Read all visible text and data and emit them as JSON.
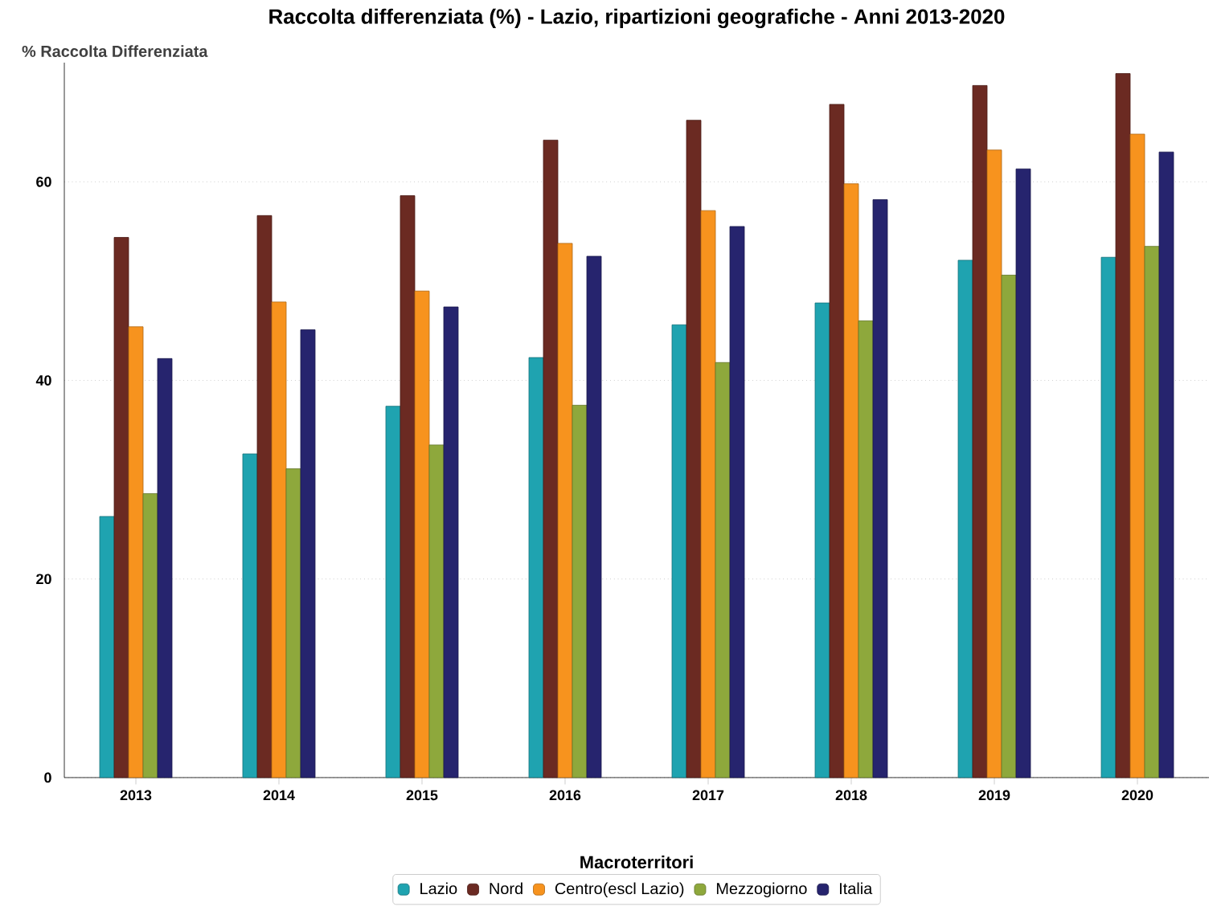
{
  "chart_data": {
    "type": "bar",
    "title": "Raccolta differenziata (%) - Lazio, ripartizioni geografiche - Anni 2013-2020",
    "ylabel": "% Raccolta Differenziata",
    "legend_title": "Macroterritori",
    "categories": [
      "2013",
      "2014",
      "2015",
      "2016",
      "2017",
      "2018",
      "2019",
      "2020"
    ],
    "series": [
      {
        "name": "Lazio",
        "color": "#1fa3b0",
        "values": [
          26.3,
          32.6,
          37.4,
          42.3,
          45.6,
          47.8,
          52.1,
          52.4
        ]
      },
      {
        "name": "Nord",
        "color": "#6b2a22",
        "values": [
          54.4,
          56.6,
          58.6,
          64.2,
          66.2,
          67.8,
          69.7,
          70.9
        ]
      },
      {
        "name": "Centro(escl Lazio)",
        "color": "#f7931e",
        "values": [
          45.4,
          47.9,
          49.0,
          53.8,
          57.1,
          59.8,
          63.2,
          64.8
        ]
      },
      {
        "name": "Mezzogiorno",
        "color": "#8ea83c",
        "values": [
          28.6,
          31.1,
          33.5,
          37.5,
          41.8,
          46.0,
          50.6,
          53.5
        ]
      },
      {
        "name": "Italia",
        "color": "#26246e",
        "values": [
          42.2,
          45.1,
          47.4,
          52.5,
          55.5,
          58.2,
          61.3,
          63.0
        ]
      }
    ],
    "ylim": [
      0,
      72
    ],
    "yticks": [
      0,
      20,
      40,
      60
    ],
    "grid": "y",
    "legend": "bottom"
  }
}
